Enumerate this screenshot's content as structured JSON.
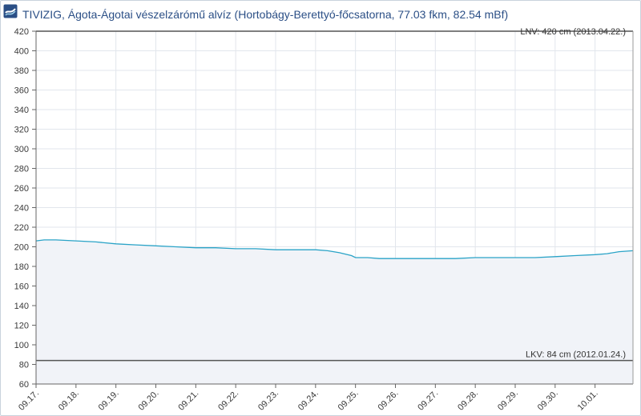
{
  "header": {
    "title": "TIVIZIG, Ágota-Ágotai vészelzárómű alvíz (Hortobágy-Berettyó-főcsatorna, 77.03 fkm, 82.54 mBf)",
    "logo_icon": "tivizig-logo-icon"
  },
  "colors": {
    "line": "#2aa3c7",
    "area": "#f1f3f8",
    "grid": "#e2e6ec",
    "threshold": "#555555",
    "title": "#2b4f86"
  },
  "chart_data": {
    "type": "area",
    "title": "TIVIZIG, Ágota-Ágotai vészelzárómű alvíz (Hortobágy-Berettyó-főcsatorna, 77.03 fkm, 82.54 mBf)",
    "xlabel": "",
    "ylabel": "",
    "ylim": [
      60,
      420
    ],
    "yticks": [
      60,
      80,
      100,
      120,
      140,
      160,
      180,
      200,
      220,
      240,
      260,
      280,
      300,
      320,
      340,
      360,
      380,
      400,
      420
    ],
    "xlim_days": [
      0,
      14.95
    ],
    "xticks": [
      "09.17.",
      "09.18.",
      "09.19.",
      "09.20.",
      "09.21.",
      "09.22.",
      "09.23.",
      "09.24.",
      "09.25.",
      "09.26.",
      "09.27.",
      "09.28.",
      "09.29.",
      "09.30.",
      "10.01."
    ],
    "grid": true,
    "series": [
      {
        "name": "",
        "x": [
          0,
          0.2,
          0.5,
          1.0,
          1.5,
          2.0,
          2.5,
          3.0,
          3.5,
          4.0,
          4.5,
          5.0,
          5.5,
          6.0,
          6.5,
          7.0,
          7.3,
          7.6,
          7.9,
          8.0,
          8.3,
          8.6,
          9.0,
          9.5,
          10.0,
          10.5,
          11.0,
          11.5,
          12.0,
          12.5,
          13.0,
          13.5,
          14.0,
          14.3,
          14.6,
          14.95
        ],
        "y": [
          206,
          207,
          207,
          206,
          205,
          203,
          202,
          201,
          200,
          199,
          199,
          198,
          198,
          197,
          197,
          197,
          196,
          194,
          191,
          189,
          189,
          188,
          188,
          188,
          188,
          188,
          189,
          189,
          189,
          189,
          190,
          191,
          192,
          193,
          195,
          196
        ]
      }
    ],
    "annotations": [
      {
        "value": 420,
        "label": "LNV: 420 cm (2013.04.22.)",
        "position": "top-right"
      },
      {
        "value": 84,
        "label": "LKV: 84 cm (2012.01.24.)",
        "position": "top-right"
      }
    ]
  }
}
